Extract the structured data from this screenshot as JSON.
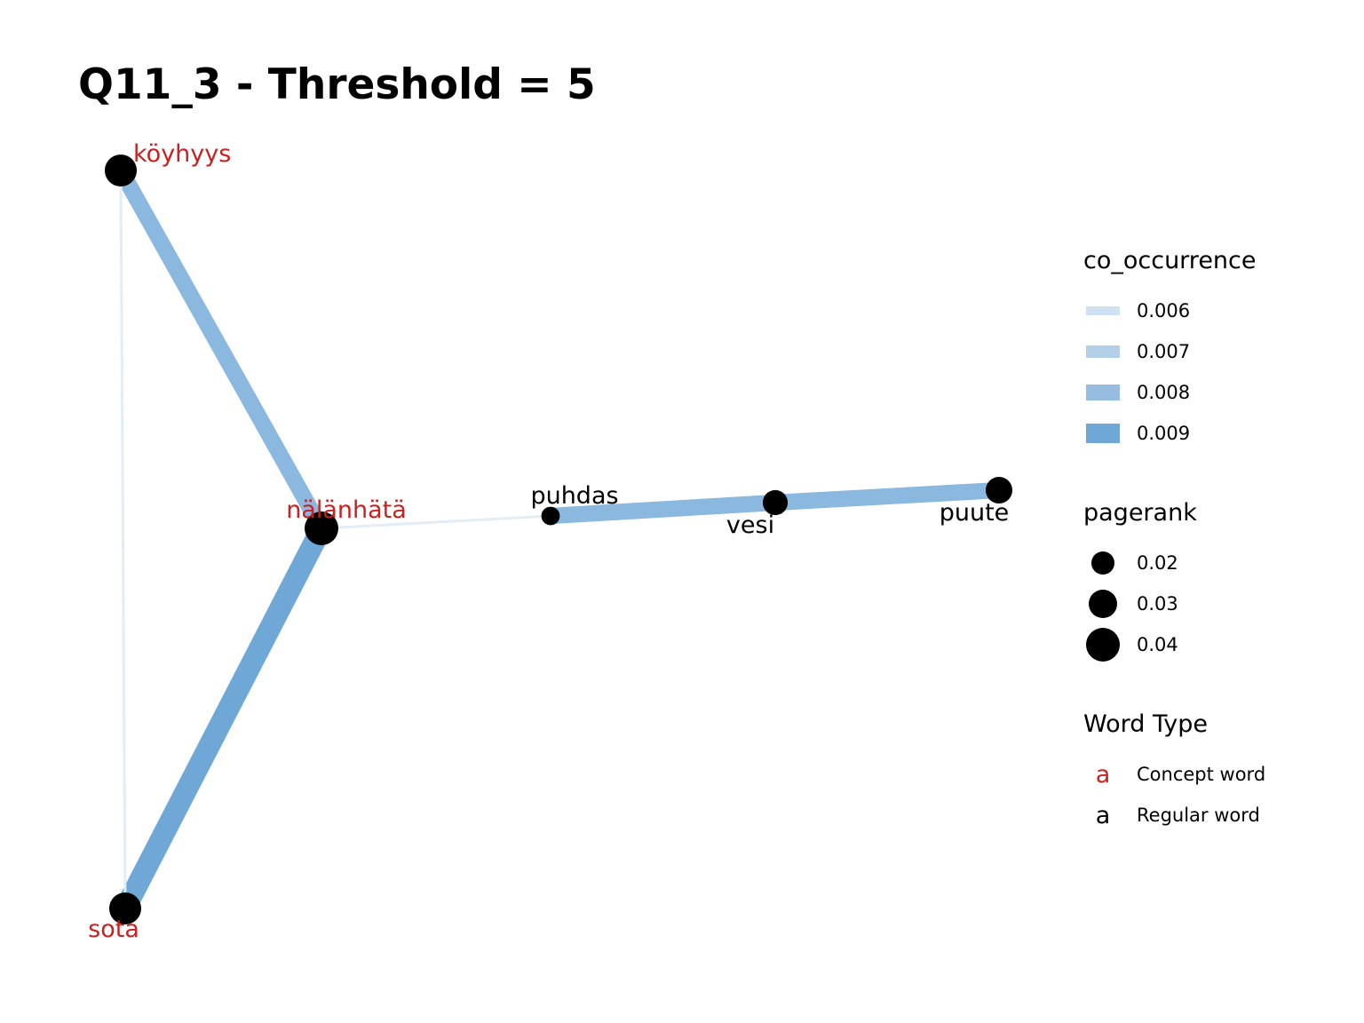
{
  "title": "Q11_3 - Threshold = 5",
  "colors": {
    "concept": "#cc1f1f",
    "regular": "#000000",
    "edge_scale": [
      "#cfe1f2",
      "#b4d0e8",
      "#96bde0",
      "#6fa8d6"
    ]
  },
  "chart_data": {
    "type": "network",
    "nodes": [
      {
        "id": "köyhyys",
        "label": "köyhyys",
        "word_type": "Concept word",
        "pagerank": 0.036
      },
      {
        "id": "nälänhätä",
        "label": "nälänhätä",
        "word_type": "Concept word",
        "pagerank": 0.04
      },
      {
        "id": "sota",
        "label": "sota",
        "word_type": "Concept word",
        "pagerank": 0.036
      },
      {
        "id": "puhdas",
        "label": "puhdas",
        "word_type": "Regular word",
        "pagerank": 0.012
      },
      {
        "id": "vesi",
        "label": "vesi",
        "word_type": "Regular word",
        "pagerank": 0.022
      },
      {
        "id": "puute",
        "label": "puute",
        "word_type": "Regular word",
        "pagerank": 0.025
      }
    ],
    "edges": [
      {
        "source": "köyhyys",
        "target": "nälänhätä",
        "co_occurrence": 0.0083
      },
      {
        "source": "nälänhätä",
        "target": "sota",
        "co_occurrence": 0.0092
      },
      {
        "source": "köyhyys",
        "target": "sota",
        "co_occurrence": 0.0058
      },
      {
        "source": "nälänhätä",
        "target": "puhdas",
        "co_occurrence": 0.0058
      },
      {
        "source": "puhdas",
        "target": "vesi",
        "co_occurrence": 0.0083
      },
      {
        "source": "vesi",
        "target": "puute",
        "co_occurrence": 0.0083
      }
    ]
  },
  "legends": {
    "co_occurrence": {
      "title": "co_occurrence",
      "items": [
        {
          "label": "0.006",
          "value": 0.006
        },
        {
          "label": "0.007",
          "value": 0.007
        },
        {
          "label": "0.008",
          "value": 0.008
        },
        {
          "label": "0.009",
          "value": 0.009
        }
      ]
    },
    "pagerank": {
      "title": "pagerank",
      "items": [
        {
          "label": "0.02",
          "value": 0.02
        },
        {
          "label": "0.03",
          "value": 0.03
        },
        {
          "label": "0.04",
          "value": 0.04
        }
      ]
    },
    "word_type": {
      "title": "Word Type",
      "items": [
        {
          "glyph": "a",
          "label": "Concept word",
          "type": "concept"
        },
        {
          "glyph": "a",
          "label": "Regular word",
          "type": "regular"
        }
      ]
    }
  }
}
